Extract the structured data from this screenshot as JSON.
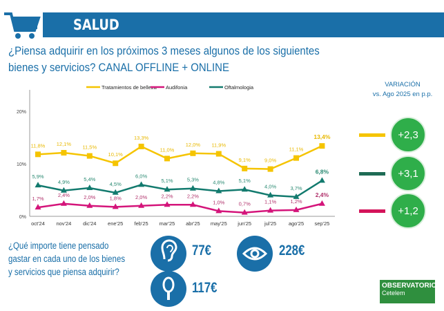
{
  "header": {
    "title": "SALUD"
  },
  "question": "¿Piensa adquirir en los próximos 3 meses algunos de los siguientes bienes y servicios? CANAL OFFLINE + ONLINE",
  "variation": {
    "title_line1": "VARIACIÓN",
    "title_line2": "vs. Ago 2025 en p.p.",
    "items": [
      {
        "series": "Tratamientos de belleza",
        "value": "+2,3",
        "color": "#f5c400"
      },
      {
        "series": "Oftalmología",
        "value": "+3,1",
        "color": "#1e6b55"
      },
      {
        "series": "Audifonía",
        "value": "+1,2",
        "color": "#d4145a"
      }
    ]
  },
  "spend": {
    "question": "¿Qué importe tiene pensado gastar en cada uno de los bienes y servicios que piensa adquirir?",
    "items": [
      {
        "icon": "ear-icon",
        "amount": "77€"
      },
      {
        "icon": "eye-icon",
        "amount": "228€"
      },
      {
        "icon": "mirror-icon",
        "amount": "117€"
      }
    ]
  },
  "logo": {
    "line1": "OBSERVATORIO",
    "line2": "Cetelem"
  },
  "chart_data": {
    "type": "line",
    "categories": [
      "oct'24",
      "nov'24",
      "dic'24",
      "ene'25",
      "feb'25",
      "mar'25",
      "abr'25",
      "may'25",
      "jun'25",
      "jul'25",
      "ago'25",
      "sep'25"
    ],
    "yticks": [
      "0%",
      "10%",
      "20%"
    ],
    "ylim": [
      0,
      20
    ],
    "legend": "top",
    "series": [
      {
        "name": "Tratamientos de belleza",
        "color": "#f5c400",
        "label_color": "#e8b800",
        "marker": "square",
        "values": [
          11.8,
          12.1,
          11.5,
          10.1,
          13.3,
          11.0,
          12.0,
          11.9,
          9.1,
          9.0,
          11.1,
          13.4
        ],
        "labels": [
          "11,8%",
          "12,1%",
          "11,5%",
          "10,1%",
          "13,3%",
          "11,0%",
          "12,0%",
          "11,9%",
          "9,1%",
          "9,0%",
          "11,1%",
          "13,4%"
        ]
      },
      {
        "name": "Audifonia",
        "color": "#d4147a",
        "label_color": "#b0306a",
        "marker": "triangle",
        "values": [
          1.7,
          2.4,
          2.0,
          1.8,
          2.0,
          2.2,
          2.2,
          1.0,
          0.7,
          1.1,
          1.2,
          2.4
        ],
        "labels": [
          "1,7%",
          "2,4%",
          "2,0%",
          "1,8%",
          "2,0%",
          "2,2%",
          "2,2%",
          "1,0%",
          "0,7%",
          "1,1%",
          "1,2%",
          "2,4%"
        ]
      },
      {
        "name": "Oftalmologia",
        "color": "#127a6e",
        "label_color": "#2a8a72",
        "marker": "triangle",
        "values": [
          5.9,
          4.9,
          5.4,
          4.5,
          6.0,
          5.1,
          5.3,
          4.8,
          5.1,
          4.0,
          3.7,
          6.8
        ],
        "labels": [
          "5,9%",
          "4,9%",
          "5,4%",
          "4,5%",
          "6,0%",
          "5,1%",
          "5,3%",
          "4,8%",
          "5,1%",
          "4,0%",
          "3,7%",
          "6,8%"
        ]
      }
    ]
  }
}
